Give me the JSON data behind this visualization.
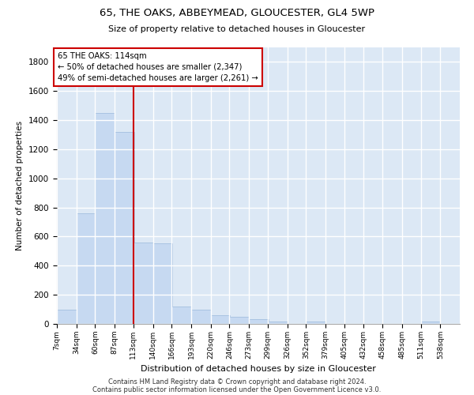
{
  "title1": "65, THE OAKS, ABBEYMEAD, GLOUCESTER, GL4 5WP",
  "title2": "Size of property relative to detached houses in Gloucester",
  "xlabel": "Distribution of detached houses by size in Gloucester",
  "ylabel": "Number of detached properties",
  "bar_color": "#c6d9f1",
  "bar_edge_color": "#9ab8dc",
  "background_color": "#dce8f5",
  "grid_color": "#ffffff",
  "annotation_box_color": "#cc0000",
  "property_line_color": "#cc0000",
  "property_line_x": 113,
  "annotation_text": "65 THE OAKS: 114sqm\n← 50% of detached houses are smaller (2,347)\n49% of semi-detached houses are larger (2,261) →",
  "footer1": "Contains HM Land Registry data © Crown copyright and database right 2024.",
  "footer2": "Contains public sector information licensed under the Open Government Licence v3.0.",
  "bin_labels": [
    "7sqm",
    "34sqm",
    "60sqm",
    "87sqm",
    "113sqm",
    "140sqm",
    "166sqm",
    "193sqm",
    "220sqm",
    "246sqm",
    "273sqm",
    "299sqm",
    "326sqm",
    "352sqm",
    "379sqm",
    "405sqm",
    "432sqm",
    "458sqm",
    "485sqm",
    "511sqm",
    "538sqm"
  ],
  "bin_edges": [
    7,
    34,
    60,
    87,
    113,
    140,
    166,
    193,
    220,
    246,
    273,
    299,
    326,
    352,
    379,
    405,
    432,
    458,
    485,
    511,
    538
  ],
  "bar_heights": [
    100,
    760,
    1450,
    1320,
    560,
    555,
    118,
    100,
    60,
    50,
    30,
    18,
    0,
    18,
    0,
    0,
    0,
    0,
    0,
    18,
    0
  ],
  "ylim": [
    0,
    1900
  ],
  "yticks": [
    0,
    200,
    400,
    600,
    800,
    1000,
    1200,
    1400,
    1600,
    1800
  ]
}
